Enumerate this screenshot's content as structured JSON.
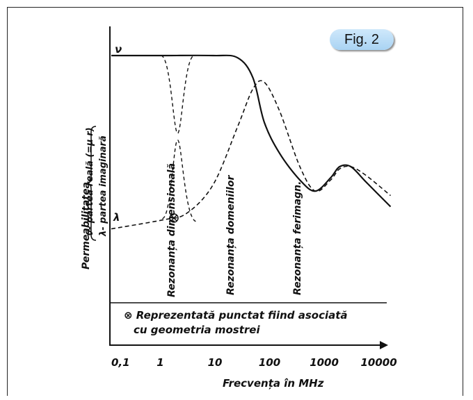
{
  "figure": {
    "badge": "Fig. 2"
  },
  "chart_data": {
    "type": "line",
    "x_scale": "log",
    "x_ticks": [
      "0,1",
      "1",
      "10",
      "100",
      "1000",
      "10000"
    ],
    "xlabel": "Frecvența în MHz",
    "ylabel": "Permeabilitatea",
    "legend_brace": [
      "ν- partea reală (=μ r)",
      "λ- partea imaginară"
    ],
    "series": [
      {
        "name": "ν",
        "style": "solid",
        "color": "#111111",
        "x": [
          0.1,
          1,
          10,
          30,
          60,
          100,
          200,
          500,
          1000,
          2000,
          3000,
          5000,
          10000,
          30000
        ],
        "y": [
          10.0,
          10.0,
          10.0,
          9.9,
          9.0,
          7.0,
          5.6,
          4.4,
          3.9,
          4.5,
          5.0,
          5.0,
          4.3,
          3.2
        ]
      },
      {
        "name": "λ",
        "style": "dashed",
        "color": "#111111",
        "x": [
          0.1,
          1,
          3,
          10,
          30,
          60,
          100,
          200,
          500,
          1000,
          2000,
          3000,
          5000,
          10000,
          30000
        ],
        "y": [
          2.2,
          2.6,
          2.9,
          4.2,
          6.8,
          8.5,
          8.8,
          7.5,
          5.0,
          3.9,
          4.4,
          4.9,
          5.0,
          4.6,
          3.7
        ]
      }
    ],
    "dimensional_resonance_dashed": {
      "nu_dip": {
        "x": 2,
        "y": 6.5
      },
      "lambda_peak": {
        "x": 2,
        "y": 6.2
      }
    },
    "annotations": [
      "Rezonanța dimensională",
      "Rezonanța domeniilor",
      "Rezonanța ferimagn."
    ],
    "note": "⊗ Reprezentată punctat fiind asociată cu geometria mostrei",
    "note_lines": [
      "⊗ Reprezentată punctat fiind asociată",
      "cu geometria mostrei"
    ],
    "series_labels": [
      "ν",
      "λ"
    ],
    "grid": false
  }
}
